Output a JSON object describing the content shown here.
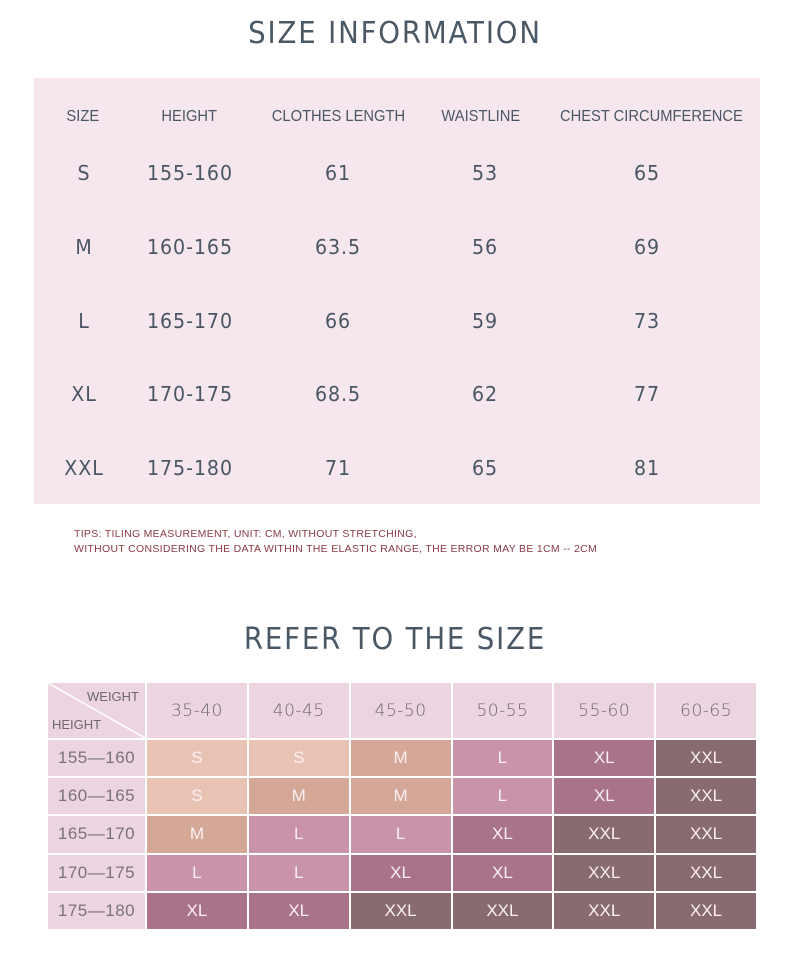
{
  "size_info": {
    "title": "SIZE INFORMATION",
    "headers": [
      "SIZE",
      "HEIGHT",
      "CLOTHES LENGTH",
      "WAISTLINE",
      "CHEST CIRCUMFERENCE"
    ],
    "rows": [
      {
        "size": "S",
        "height": "155-160",
        "length": "61",
        "waist": "53",
        "chest": "65"
      },
      {
        "size": "M",
        "height": "160-165",
        "length": "63.5",
        "waist": "56",
        "chest": "69"
      },
      {
        "size": "L",
        "height": "165-170",
        "length": "66",
        "waist": "59",
        "chest": "73"
      },
      {
        "size": "XL",
        "height": "170-175",
        "length": "68.5",
        "waist": "62",
        "chest": "77"
      },
      {
        "size": "XXL",
        "height": "175-180",
        "length": "71",
        "waist": "65",
        "chest": "81"
      }
    ],
    "tips_line1": "TIPS: TILING MEASUREMENT, UNIT: CM, WITHOUT STRETCHING,",
    "tips_line2": "WITHOUT CONSIDERING THE DATA WITHIN THE ELASTIC RANGE, THE ERROR MAY BE 1CM -- 2CM"
  },
  "refer": {
    "title": "REFER TO THE SIZE",
    "corner_top": "WEIGHT",
    "corner_bottom": "HEIGHT",
    "weights": [
      "35-40",
      "40-45",
      "45-50",
      "50-55",
      "55-60",
      "60-65"
    ],
    "heights": [
      "155—160",
      "160—165",
      "165—170",
      "170—175",
      "175—180"
    ],
    "grid": [
      [
        "S",
        "S",
        "M",
        "L",
        "XL",
        "XXL"
      ],
      [
        "S",
        "M",
        "M",
        "L",
        "XL",
        "XXL"
      ],
      [
        "M",
        "L",
        "L",
        "XL",
        "XXL",
        "XXL"
      ],
      [
        "L",
        "L",
        "XL",
        "XL",
        "XXL",
        "XXL"
      ],
      [
        "XL",
        "XL",
        "XXL",
        "XXL",
        "XXL",
        "XXL"
      ]
    ],
    "colors": {
      "S": "#e8c3b3",
      "M": "#d4a797",
      "L": "#c993a9",
      "XL": "#a97489",
      "XXL": "#876b70",
      "header": "#ecd4e0"
    }
  }
}
